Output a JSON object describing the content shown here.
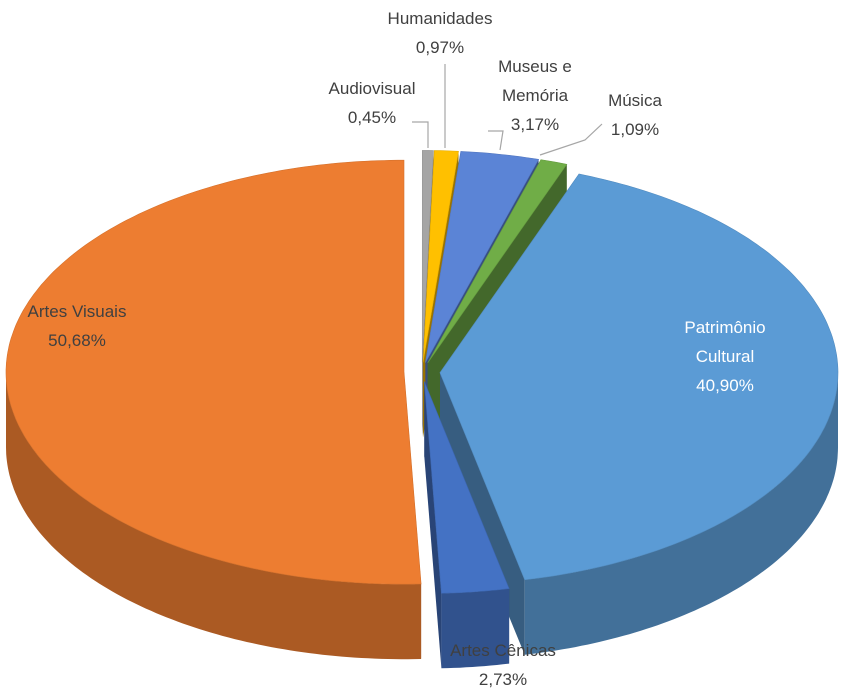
{
  "chart_data": {
    "type": "pie",
    "categories": [
      "Audiovisual",
      "Humanidades",
      "Museus e Memória",
      "Música",
      "Patrimônio Cultural",
      "Artes Cênicas",
      "Artes Visuais"
    ],
    "values": [
      0.45,
      0.97,
      3.17,
      1.09,
      40.9,
      2.73,
      50.68
    ],
    "value_labels": [
      "0,45%",
      "0,97%",
      "3,17%",
      "1,09%",
      "40,90%",
      "2,73%",
      "50,68%"
    ],
    "colors": [
      "#a5a5a5",
      "#ffc000",
      "#5b84d6",
      "#70ad47",
      "#5b9bd5",
      "#4472c4",
      "#ed7d31"
    ]
  }
}
